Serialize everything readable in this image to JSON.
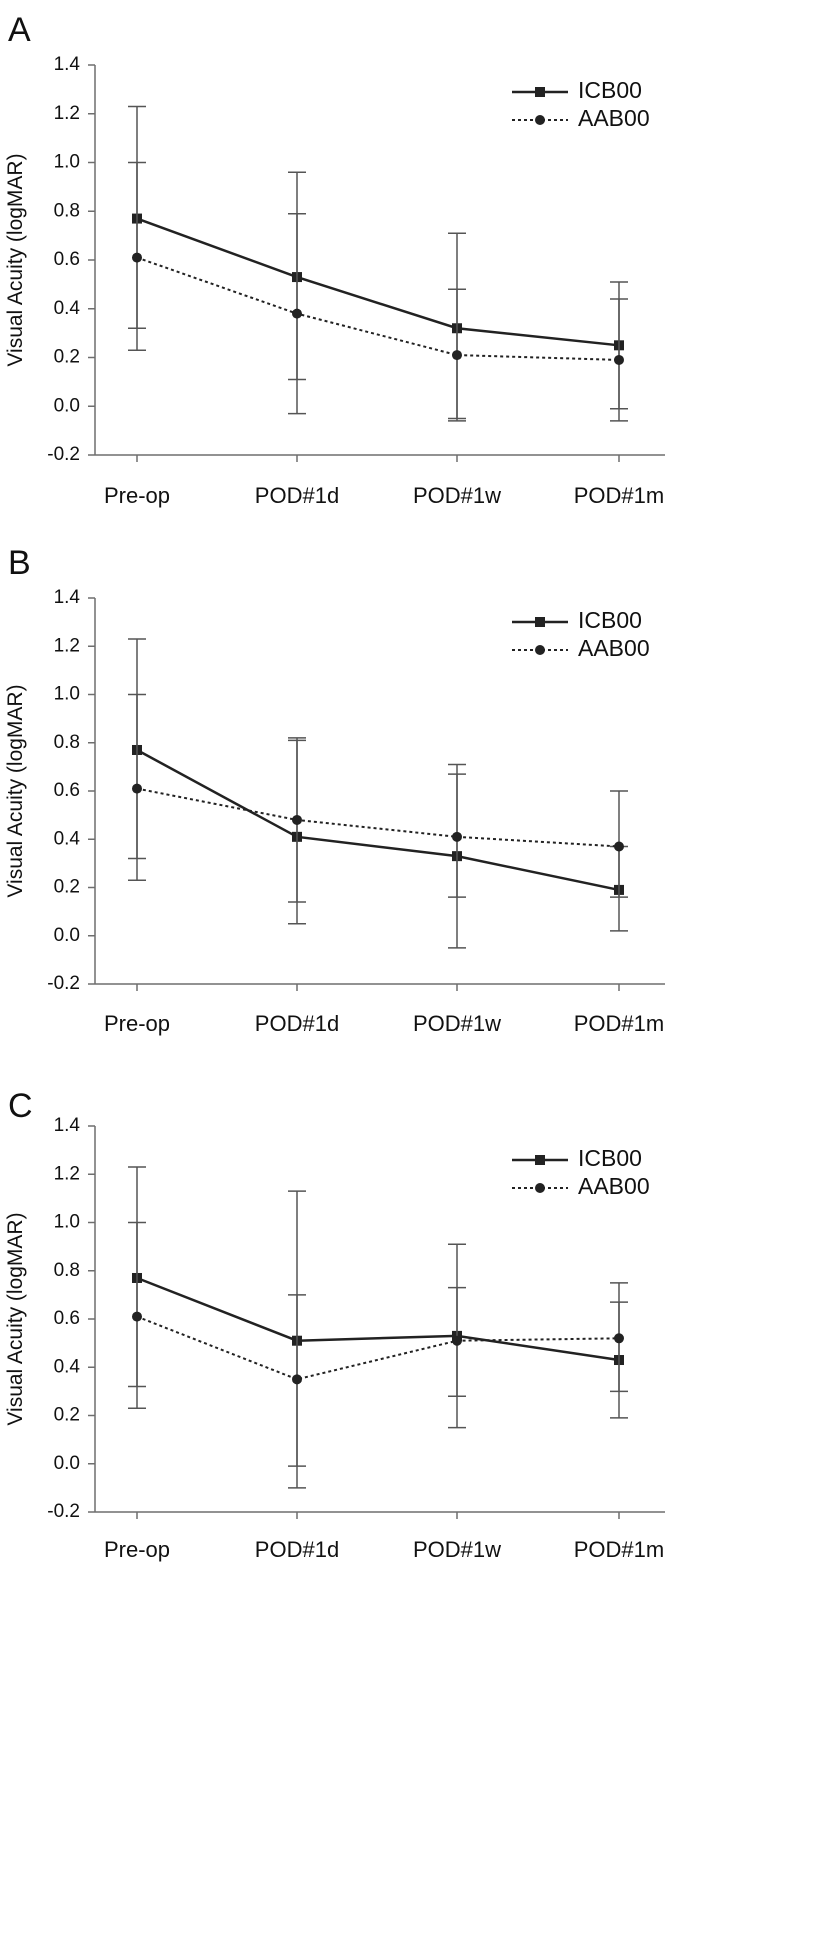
{
  "colors": {
    "icb": "#222222",
    "aab": "#222222",
    "axis": "#6e6e6e",
    "errorbar": "#555555"
  },
  "chart_data": [
    {
      "panel": "A",
      "type": "line",
      "ylabel": "Visual Acuity (logMAR)",
      "ylim": [
        -0.2,
        1.4
      ],
      "yticks": [
        "1.4",
        "1.2",
        "1.0",
        "0.8",
        "0.6",
        "0.4",
        "0.2",
        "0.0",
        "-0.2"
      ],
      "categories": [
        "Pre-op",
        "POD#1d",
        "POD#1w",
        "POD#1m"
      ],
      "series": [
        {
          "name": "ICB00",
          "style": "solid",
          "marker": "square",
          "values": [
            0.77,
            0.53,
            0.32,
            0.25
          ],
          "err_low": [
            0.32,
            0.11,
            -0.05,
            -0.01
          ],
          "err_high": [
            1.23,
            0.96,
            0.71,
            0.51
          ]
        },
        {
          "name": "AAB00",
          "style": "dotted",
          "marker": "circle",
          "values": [
            0.61,
            0.38,
            0.21,
            0.19
          ],
          "err_low": [
            0.23,
            -0.03,
            -0.06,
            -0.06
          ],
          "err_high": [
            1.0,
            0.79,
            0.48,
            0.44
          ]
        }
      ]
    },
    {
      "panel": "B",
      "type": "line",
      "ylabel": "Visual Acuity (logMAR)",
      "ylim": [
        -0.2,
        1.4
      ],
      "yticks": [
        "1.4",
        "1.2",
        "1.0",
        "0.8",
        "0.6",
        "0.4",
        "0.2",
        "0.0",
        "-0.2"
      ],
      "categories": [
        "Pre-op",
        "POD#1d",
        "POD#1w",
        "POD#1m"
      ],
      "series": [
        {
          "name": "ICB00",
          "style": "solid",
          "marker": "square",
          "values": [
            0.77,
            0.41,
            0.33,
            0.19
          ],
          "err_low": [
            0.32,
            0.05,
            -0.05,
            0.02
          ],
          "err_high": [
            1.23,
            0.81,
            0.71,
            0.37
          ]
        },
        {
          "name": "AAB00",
          "style": "dotted",
          "marker": "circle",
          "values": [
            0.61,
            0.48,
            0.41,
            0.37
          ],
          "err_low": [
            0.23,
            0.14,
            0.16,
            0.16
          ],
          "err_high": [
            1.0,
            0.82,
            0.67,
            0.6
          ]
        }
      ]
    },
    {
      "panel": "C",
      "type": "line",
      "ylabel": "Visual Acuity (logMAR)",
      "ylim": [
        -0.2,
        1.4
      ],
      "yticks": [
        "1.4",
        "1.2",
        "1.0",
        "0.8",
        "0.6",
        "0.4",
        "0.2",
        "0.0",
        "-0.2"
      ],
      "categories": [
        "Pre-op",
        "POD#1d",
        "POD#1w",
        "POD#1m"
      ],
      "series": [
        {
          "name": "ICB00",
          "style": "solid",
          "marker": "square",
          "values": [
            0.77,
            0.51,
            0.53,
            0.43
          ],
          "err_low": [
            0.32,
            -0.1,
            0.15,
            0.19
          ],
          "err_high": [
            1.23,
            1.13,
            0.91,
            0.67
          ]
        },
        {
          "name": "AAB00",
          "style": "dotted",
          "marker": "circle",
          "values": [
            0.61,
            0.35,
            0.51,
            0.52
          ],
          "err_low": [
            0.23,
            -0.01,
            0.28,
            0.3
          ],
          "err_high": [
            1.0,
            0.7,
            0.73,
            0.75
          ]
        }
      ]
    }
  ]
}
